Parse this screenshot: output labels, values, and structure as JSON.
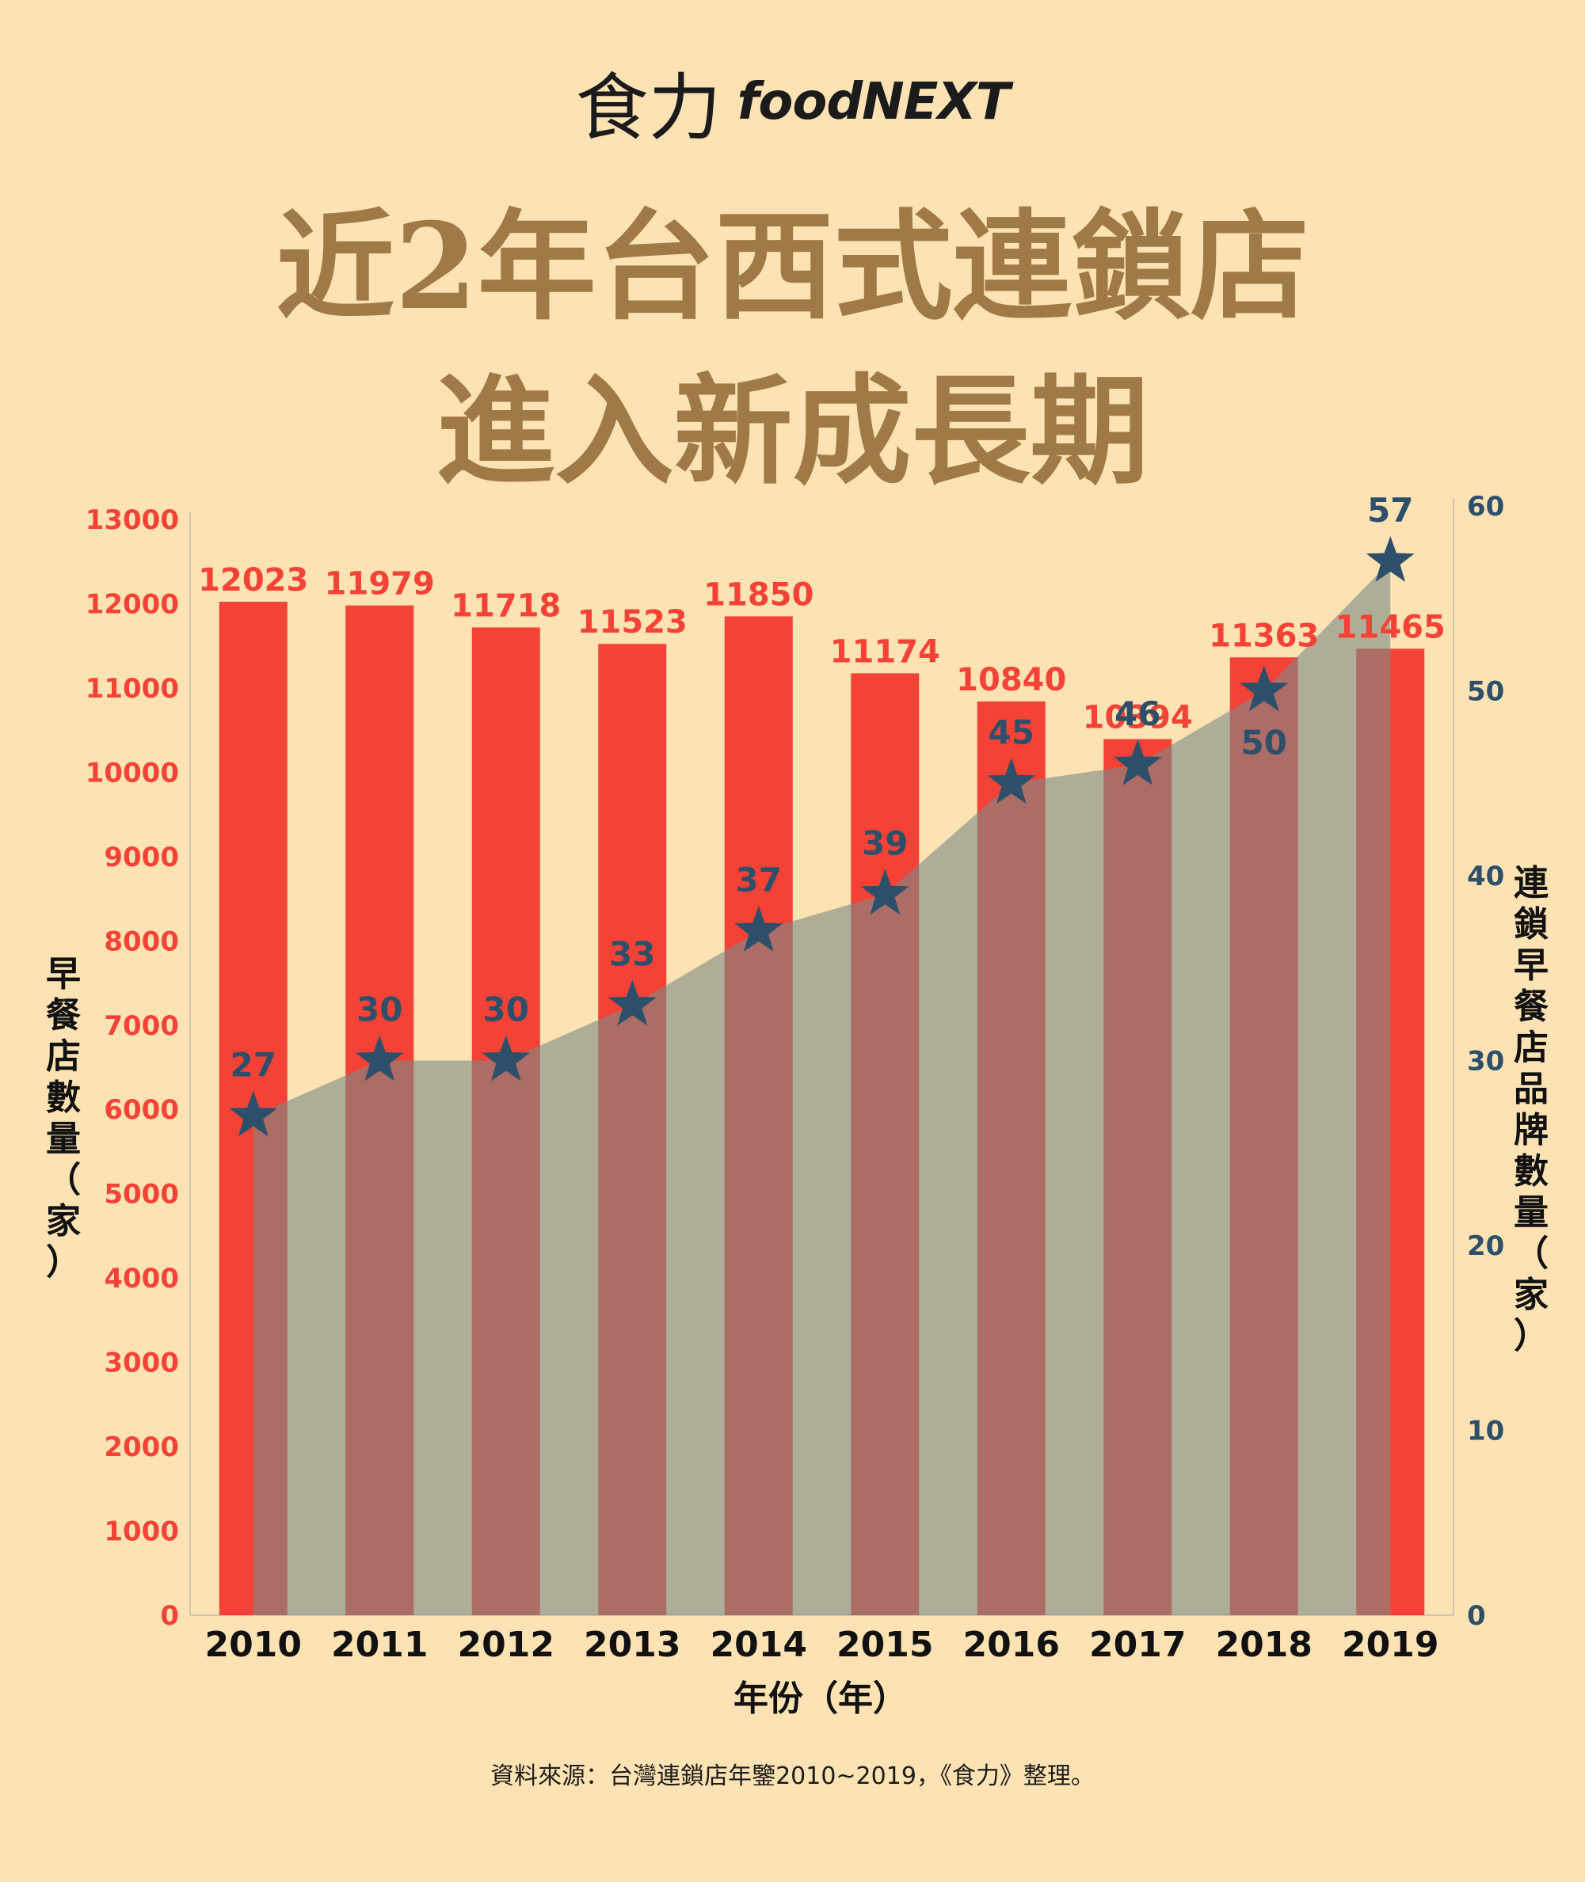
{
  "logo": {
    "zh": "食力",
    "en": "foodNEXT"
  },
  "title": {
    "line1": "近2年台西式連鎖店",
    "line2": "進入新成長期"
  },
  "source": "資料來源：台灣連鎖店年鑒2010~2019，《食力》整理。",
  "colors": {
    "background": "#fde3b3",
    "bar": "#f44336",
    "area": "#7a8b86",
    "star": "#2e4f6a",
    "title": "#a07a46",
    "left_axis_text": "#f44336",
    "right_axis_text": "#2e4f6a"
  },
  "chart_data": {
    "type": "bar",
    "categories": [
      "2010",
      "2011",
      "2012",
      "2013",
      "2014",
      "2015",
      "2016",
      "2017",
      "2018",
      "2019"
    ],
    "xlabel": "年份（年）",
    "ylabel": "早餐店數量（家）",
    "y2label": "連鎖早餐店品牌數量（家）",
    "ylim": [
      0,
      13000
    ],
    "y2lim": [
      0,
      60
    ],
    "yticks": [
      0,
      1000,
      2000,
      3000,
      4000,
      5000,
      6000,
      7000,
      8000,
      9000,
      10000,
      11000,
      12000,
      13000
    ],
    "y2ticks": [
      0,
      10,
      20,
      30,
      40,
      50,
      60
    ],
    "series": [
      {
        "values": [
          12023,
          11979,
          11718,
          11523,
          11850,
          11174,
          10840,
          10394,
          11363,
          11465
        ],
        "axis": "left",
        "kind": "bar"
      },
      {
        "values": [
          27,
          30,
          30,
          33,
          37,
          39,
          45,
          46,
          50,
          57
        ],
        "axis": "right",
        "kind": "area-with-star-markers"
      }
    ]
  }
}
